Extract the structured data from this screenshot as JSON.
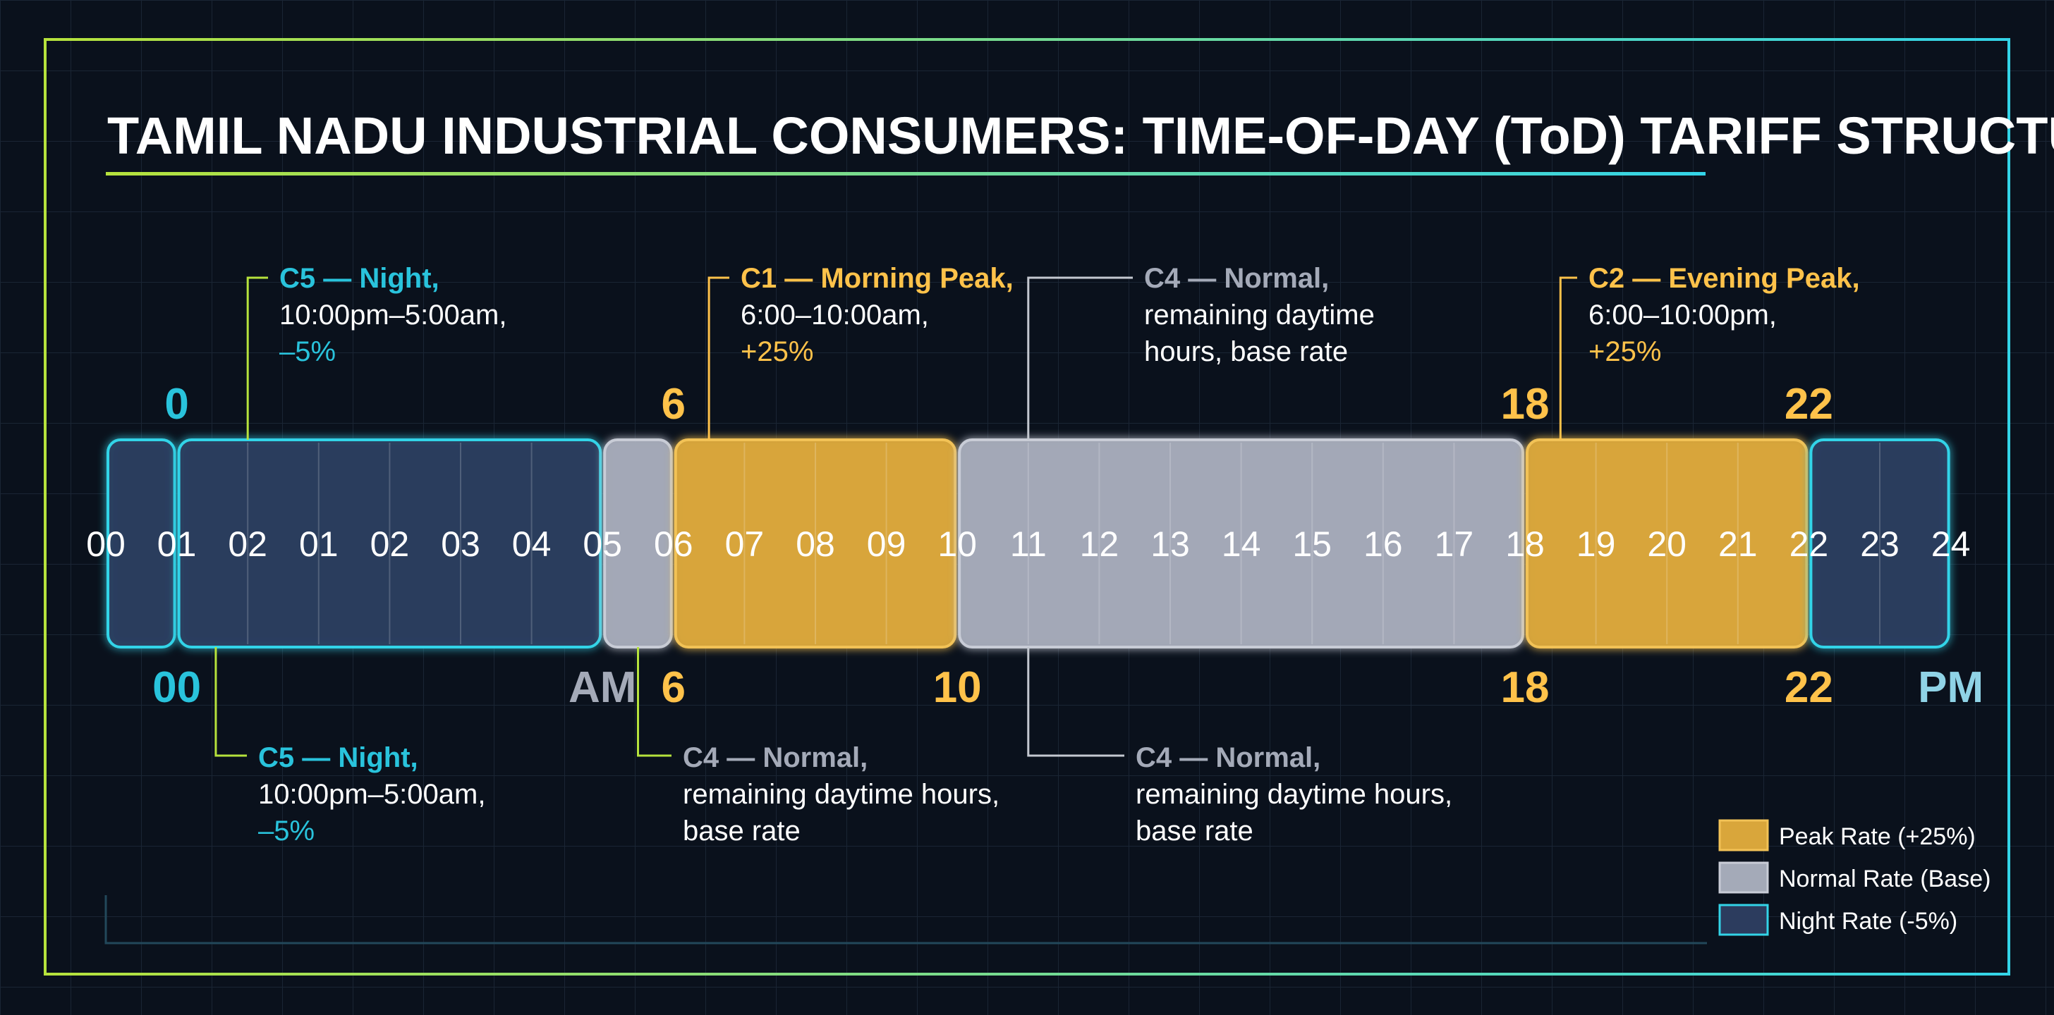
{
  "title": "TAMIL NADU INDUSTRIAL CONSUMERS: TIME-OF-DAY (ToD) TARIFF STRUCTURE",
  "colors": {
    "peak": "#d9a63b",
    "normal": "#a4aab8",
    "night": "#2c3c5e",
    "peak_text": "#ffc24a",
    "night_text": "#29c3dc",
    "normal_text": "#a4aab8",
    "cyan": "#33d4e8",
    "leader_lime": "#b6e23c",
    "leader_gray": "#c4c8d0"
  },
  "hour_labels": [
    "00",
    "01",
    "02",
    "01",
    "02",
    "03",
    "04",
    "05",
    "06",
    "07",
    "08",
    "09",
    "10",
    "11",
    "12",
    "13",
    "14",
    "15",
    "16",
    "17",
    "18",
    "19",
    "20",
    "21",
    "22",
    "23",
    "24"
  ],
  "boundary_labels_top": [
    {
      "text": "0",
      "tone": "night"
    },
    {
      "text": "6",
      "tone": "peak"
    },
    {
      "text": "18",
      "tone": "peak"
    },
    {
      "text": "22",
      "tone": "peak"
    }
  ],
  "boundary_labels_bottom": [
    {
      "text": "00",
      "tone": "night"
    },
    {
      "text": "AM",
      "tone": "normal"
    },
    {
      "text": "6",
      "tone": "peak"
    },
    {
      "text": "10",
      "tone": "peak"
    },
    {
      "text": "18",
      "tone": "peak"
    },
    {
      "text": "22",
      "tone": "peak"
    },
    {
      "text": "PM",
      "tone": "night"
    }
  ],
  "segments": [
    {
      "rate": "night",
      "from": 0,
      "to": 1
    },
    {
      "rate": "night",
      "from": 1,
      "to": 7
    },
    {
      "rate": "normal",
      "from": 7,
      "to": 8
    },
    {
      "rate": "peak",
      "from": 8,
      "to": 12
    },
    {
      "rate": "normal",
      "from": 12,
      "to": 20
    },
    {
      "rate": "peak",
      "from": 20,
      "to": 24
    },
    {
      "rate": "night",
      "from": 24,
      "to": 26
    }
  ],
  "annotations_top": [
    {
      "heading": "C5 — Night,",
      "lines": [
        "10:00pm–5:00am,"
      ],
      "rate": "–5%",
      "tone": "night"
    },
    {
      "heading": "C1 — Morning Peak,",
      "lines": [
        "6:00–10:00am,"
      ],
      "rate": "+25%",
      "tone": "peak"
    },
    {
      "heading": "C4 — Normal,",
      "lines": [
        "remaining daytime",
        "hours, base rate"
      ],
      "rate": "",
      "tone": "normal"
    },
    {
      "heading": "C2 — Evening Peak,",
      "lines": [
        "6:00–10:00pm,"
      ],
      "rate": "+25%",
      "tone": "peak"
    }
  ],
  "annotations_bottom": [
    {
      "heading": "C5 — Night,",
      "lines": [
        "10:00pm–5:00am,"
      ],
      "rate": "–5%",
      "tone": "night"
    },
    {
      "heading": "C4 — Normal,",
      "lines": [
        "remaining daytime hours,",
        "base rate"
      ],
      "rate": "",
      "tone": "normal"
    },
    {
      "heading": "C4 — Normal,",
      "lines": [
        "remaining daytime hours,",
        "base rate"
      ],
      "rate": "",
      "tone": "normal"
    }
  ],
  "legend": [
    {
      "label": "Peak Rate (+25%)",
      "rate": "peak"
    },
    {
      "label": "Normal Rate (Base)",
      "rate": "normal"
    },
    {
      "label": "Night Rate (-5%)",
      "rate": "night"
    }
  ]
}
